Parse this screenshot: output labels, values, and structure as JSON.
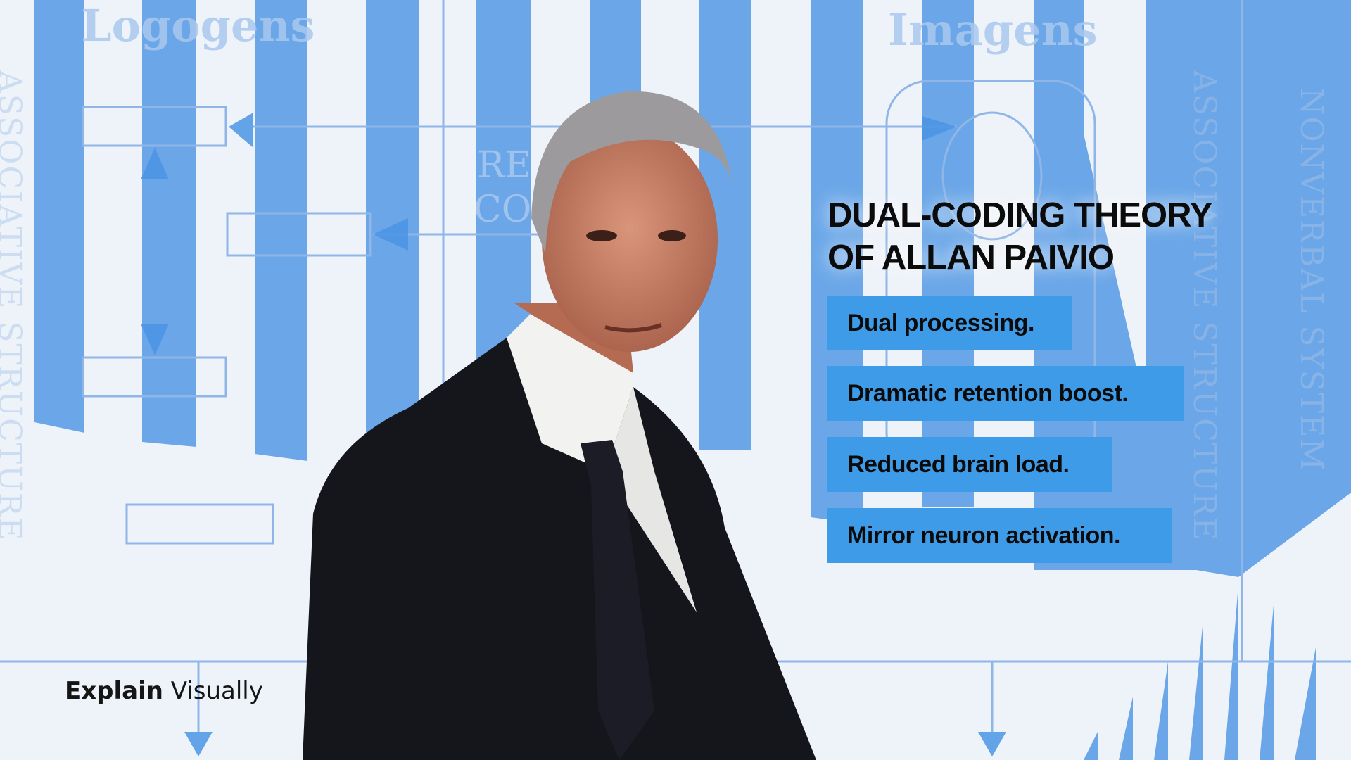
{
  "background": {
    "labels": [
      "Logogens",
      "Imagens",
      "RE",
      "CO"
    ],
    "vertical_labels": [
      "ASSOCIATIVE STRUCTURE",
      "ASSOCIATIVE STRUCTURE",
      "NONVERBAL SYSTEM"
    ],
    "stripe_color": "#4a94e4"
  },
  "slide": {
    "title_line1": "DUAL-CODING THEORY",
    "title_line2": "OF ALLAN PAIVIO",
    "points": [
      "Dual processing.",
      "Dramatic retention boost.",
      "Reduced brain load.",
      "Mirror neuron activation."
    ],
    "pill_color": "#3d9be8"
  },
  "logo": {
    "word1": "Explain",
    "word2": "Visually"
  }
}
